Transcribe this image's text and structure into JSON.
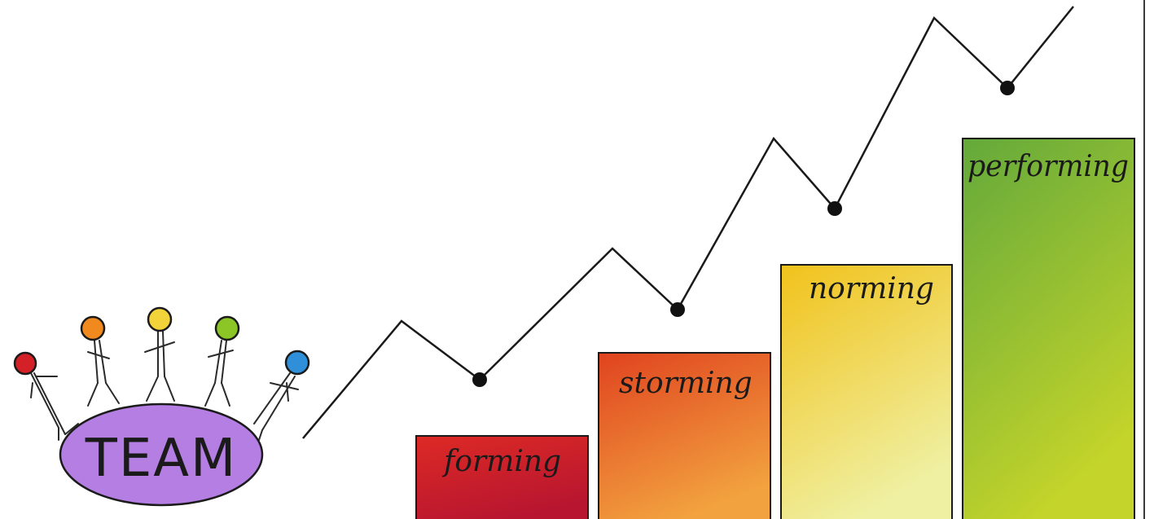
{
  "team": {
    "label": "TEAM",
    "oval_color": "#b57ee3",
    "member_colors": [
      "#d42128",
      "#f08a1e",
      "#f2d43a",
      "#8bc526",
      "#2f8fd8"
    ]
  },
  "stages": [
    {
      "label": "forming",
      "level": 1,
      "color_top": "#dd2a25",
      "color_bottom": "#b71530"
    },
    {
      "label": "storming",
      "level": 2,
      "color_top": "#e0431f",
      "color_bottom": "#f2a23f"
    },
    {
      "label": "norming",
      "level": 3,
      "color_top": "#f1c21b",
      "color_bottom": "#eff0a2"
    },
    {
      "label": "performing",
      "level": 4,
      "color_top": "#63a93b",
      "color_bottom": "#c4d42a"
    }
  ],
  "line_color": "#1a1a1a",
  "right_border_color": "#3a3a3a"
}
